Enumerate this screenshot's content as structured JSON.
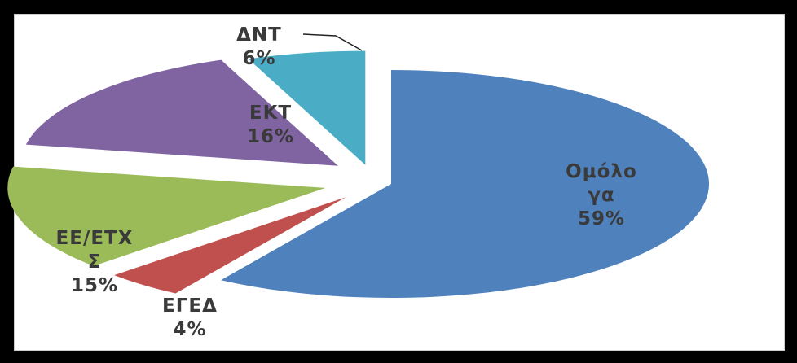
{
  "chart_data": {
    "type": "pie",
    "exploded": true,
    "slices": [
      {
        "label_lines": [
          "Ομόλο",
          "γα"
        ],
        "percent_label": "59%",
        "value": 59,
        "color": "#4f81bd"
      },
      {
        "label_lines": [
          "ΕΓΕΔ"
        ],
        "percent_label": "4%",
        "value": 4,
        "color": "#c0504d"
      },
      {
        "label_lines": [
          "ΕΕ/ΕΤΧ",
          "Σ"
        ],
        "percent_label": "15%",
        "value": 15,
        "color": "#9bbb59"
      },
      {
        "label_lines": [
          "ΕΚΤ"
        ],
        "percent_label": "16%",
        "value": 16,
        "color": "#8064a2"
      },
      {
        "label_lines": [
          "ΔΝΤ"
        ],
        "percent_label": "6%",
        "value": 6,
        "color": "#4bacc6"
      }
    ]
  }
}
